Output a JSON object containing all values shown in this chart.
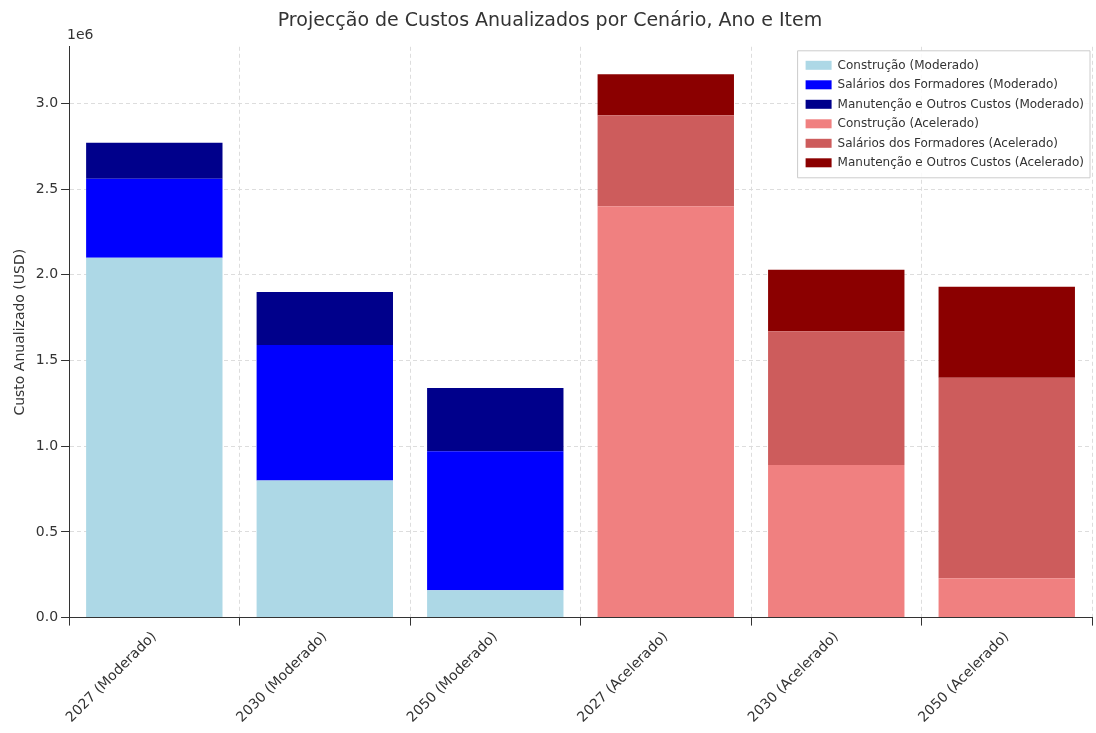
{
  "chart_data": {
    "type": "bar",
    "title": "Projecção de Custos Anualizados por Cenário, Ano e Item",
    "ylabel": "Custo Anualizado (USD)",
    "annotations": [
      "1e6"
    ],
    "categories": [
      "2027 (Moderado)",
      "2030 (Moderado)",
      "2050 (Moderado)",
      "2027 (Acelerado)",
      "2030 (Acelerado)",
      "2050 (Acelerado)"
    ],
    "stacked": true,
    "grid": true,
    "legend": "top right",
    "ylim": [
      0,
      3.33
    ],
    "yticks": [
      {
        "value": 0,
        "label": "0.0"
      },
      0.5,
      {
        "value": 1,
        "label": "1.0"
      },
      1.5,
      {
        "value": 2,
        "label": "2.0"
      },
      2.5,
      {
        "value": 3,
        "label": "3.0"
      }
    ],
    "series": [
      {
        "name": "Construção (Moderado)",
        "color": "#add8e6",
        "values": [
          2.1,
          0.8,
          0.16,
          null,
          null,
          null
        ]
      },
      {
        "name": "Salários dos Formadores (Moderado)",
        "color": "#0000ff",
        "values": [
          0.46,
          0.79,
          0.81,
          null,
          null,
          null
        ]
      },
      {
        "name": "Manutenção e Outros Custos (Moderado)",
        "color": "#00008b",
        "values": [
          0.21,
          0.31,
          0.37,
          null,
          null,
          null
        ]
      },
      {
        "name": "Construção (Acelerado)",
        "color": "#f08080",
        "values": [
          null,
          null,
          null,
          2.4,
          0.89,
          0.23
        ]
      },
      {
        "name": "Salários dos Formadores (Acelerado)",
        "color": "#cd5c5c",
        "values": [
          null,
          null,
          null,
          0.53,
          0.78,
          1.17
        ]
      },
      {
        "name": "Manutenção e Outros Custos (Acelerado)",
        "color": "#8b0000",
        "values": [
          null,
          null,
          null,
          0.24,
          0.36,
          0.53
        ]
      }
    ]
  }
}
